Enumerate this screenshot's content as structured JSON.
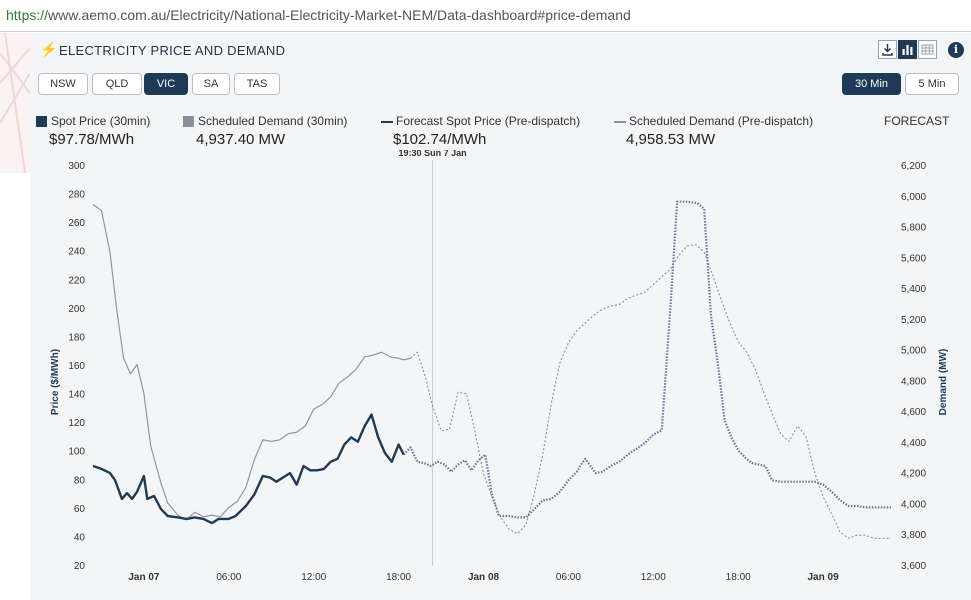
{
  "browser": {
    "url_scheme": "https://",
    "url_rest": "www.aemo.com.au/Electricity/National-Electricity-Market-NEM/Data-dashboard#price-demand"
  },
  "panel": {
    "title": "ELECTRICITY PRICE AND DEMAND",
    "info_label": "i"
  },
  "regions": [
    "NSW",
    "QLD",
    "VIC",
    "SA",
    "TAS"
  ],
  "selected_region": "VIC",
  "intervals": [
    "30 Min",
    "5 Min"
  ],
  "selected_interval": "30 Min",
  "legend": {
    "spot_label": "Spot Price (30min)",
    "spot_value": "$97.78/MWh",
    "demand_label": "Scheduled Demand (30min)",
    "demand_value": "4,937.40 MW",
    "fc_spot_label": "Forecast Spot Price (Pre-dispatch)",
    "fc_spot_value": "$102.74/MWh",
    "fc_demand_label": "Scheduled Demand (Pre-dispatch)",
    "fc_demand_value": "4,958.53 MW",
    "forecast_label": "FORECAST"
  },
  "colors": {
    "spot": "#1f3a56",
    "demand": "#8a8f99",
    "forecast_spot": "#6d7391",
    "forecast_demand": "#8a8f99",
    "accent": "#1f3a56"
  },
  "chart_data": {
    "type": "line",
    "xlabel": "",
    "ylabel": "Price ($/MWh)",
    "y2label": "Demand (MW)",
    "ylim": [
      20,
      300
    ],
    "y2lim": [
      3600,
      6200
    ],
    "yticks": [
      20,
      40,
      60,
      80,
      100,
      120,
      140,
      160,
      180,
      200,
      220,
      240,
      260,
      280,
      300
    ],
    "y2ticks": [
      "3,600",
      "3,800",
      "4,000",
      "4,200",
      "4,400",
      "4,600",
      "4,800",
      "5,000",
      "5,200",
      "5,400",
      "5,600",
      "5,800",
      "6,000",
      "6,200"
    ],
    "xticks": [
      {
        "label": "Jan 07",
        "x": 3,
        "bold": true
      },
      {
        "label": "06:00",
        "x": 8,
        "bold": false
      },
      {
        "label": "12:00",
        "x": 13,
        "bold": false
      },
      {
        "label": "18:00",
        "x": 18,
        "bold": false
      },
      {
        "label": "Jan 08",
        "x": 23,
        "bold": true
      },
      {
        "label": "06:00",
        "x": 28,
        "bold": false
      },
      {
        "label": "12:00",
        "x": 33,
        "bold": false
      },
      {
        "label": "18:00",
        "x": 38,
        "bold": false
      },
      {
        "label": "Jan 09",
        "x": 43,
        "bold": true
      }
    ],
    "xrange": [
      0,
      47
    ],
    "now_x": 20,
    "now_label": "19:30 Sun 7 Jan",
    "series": [
      {
        "name": "Spot Price (30min)",
        "axis": "left",
        "style": "solid",
        "points": [
          [
            0,
            90
          ],
          [
            0.5,
            88
          ],
          [
            1,
            85
          ],
          [
            1.3,
            80
          ],
          [
            1.7,
            67
          ],
          [
            2,
            71
          ],
          [
            2.3,
            67
          ],
          [
            2.6,
            72
          ],
          [
            3,
            83
          ],
          [
            3.2,
            67
          ],
          [
            3.6,
            69
          ],
          [
            4,
            60
          ],
          [
            4.4,
            55
          ],
          [
            5,
            54
          ],
          [
            5.5,
            53
          ],
          [
            6,
            54
          ],
          [
            6.5,
            53
          ],
          [
            7,
            50
          ],
          [
            7.4,
            53
          ],
          [
            8,
            53
          ],
          [
            8.4,
            55
          ],
          [
            9,
            62
          ],
          [
            9.5,
            70
          ],
          [
            10,
            83
          ],
          [
            10.4,
            82
          ],
          [
            10.8,
            79
          ],
          [
            11.2,
            82
          ],
          [
            11.6,
            85
          ],
          [
            12,
            77
          ],
          [
            12.4,
            90
          ],
          [
            12.8,
            87
          ],
          [
            13.2,
            87
          ],
          [
            13.6,
            88
          ],
          [
            14,
            93
          ],
          [
            14.4,
            95
          ],
          [
            14.8,
            105
          ],
          [
            15.2,
            110
          ],
          [
            15.6,
            107
          ],
          [
            16,
            118
          ],
          [
            16.4,
            126
          ],
          [
            16.8,
            110
          ],
          [
            17.2,
            99
          ],
          [
            17.6,
            93
          ],
          [
            18,
            105
          ],
          [
            18.3,
            98
          ]
        ]
      },
      {
        "name": "Scheduled Demand (30min)",
        "axis": "right",
        "style": "solid",
        "points": [
          [
            0,
            5950
          ],
          [
            0.5,
            5910
          ],
          [
            1,
            5640
          ],
          [
            1.4,
            5260
          ],
          [
            1.8,
            4950
          ],
          [
            2.2,
            4850
          ],
          [
            2.6,
            4910
          ],
          [
            3,
            4720
          ],
          [
            3.4,
            4380
          ],
          [
            4,
            4140
          ],
          [
            4.4,
            4010
          ],
          [
            5,
            3930
          ],
          [
            5.5,
            3900
          ],
          [
            6,
            3950
          ],
          [
            6.5,
            3920
          ],
          [
            7,
            3930
          ],
          [
            7.5,
            3920
          ],
          [
            8,
            3980
          ],
          [
            8.5,
            4020
          ],
          [
            9,
            4110
          ],
          [
            9.5,
            4290
          ],
          [
            10,
            4420
          ],
          [
            10.5,
            4410
          ],
          [
            11,
            4420
          ],
          [
            11.5,
            4460
          ],
          [
            12,
            4470
          ],
          [
            12.5,
            4510
          ],
          [
            13,
            4620
          ],
          [
            13.5,
            4650
          ],
          [
            14,
            4700
          ],
          [
            14.5,
            4790
          ],
          [
            15,
            4830
          ],
          [
            15.5,
            4880
          ],
          [
            16,
            4960
          ],
          [
            16.5,
            4970
          ],
          [
            17,
            4990
          ],
          [
            17.5,
            4960
          ],
          [
            18,
            4950
          ],
          [
            18.3,
            4940
          ],
          [
            18.7,
            4950
          ]
        ]
      },
      {
        "name": "Forecast Spot Price (Pre-dispatch)",
        "axis": "left",
        "style": "dotted",
        "points": [
          [
            18.3,
            98
          ],
          [
            18.7,
            103
          ],
          [
            19.1,
            93
          ],
          [
            19.5,
            92
          ],
          [
            19.9,
            90
          ],
          [
            20.3,
            93
          ],
          [
            20.7,
            91
          ],
          [
            21.1,
            86
          ],
          [
            21.5,
            91
          ],
          [
            21.9,
            94
          ],
          [
            22.3,
            87
          ],
          [
            22.7,
            94
          ],
          [
            23.1,
            98
          ],
          [
            23.5,
            70
          ],
          [
            23.9,
            55
          ],
          [
            24.5,
            55
          ],
          [
            25,
            54
          ],
          [
            25.5,
            54
          ],
          [
            26,
            60
          ],
          [
            26.5,
            66
          ],
          [
            27,
            67
          ],
          [
            27.5,
            72
          ],
          [
            28,
            80
          ],
          [
            28.5,
            86
          ],
          [
            28.8,
            92
          ],
          [
            29,
            95
          ],
          [
            29.3,
            90
          ],
          [
            29.6,
            85
          ],
          [
            30,
            86
          ],
          [
            30.5,
            90
          ],
          [
            31,
            93
          ],
          [
            31.5,
            98
          ],
          [
            32,
            102
          ],
          [
            32.5,
            106
          ],
          [
            33,
            112
          ],
          [
            33.5,
            115
          ],
          [
            34,
            200
          ],
          [
            34.4,
            275
          ],
          [
            35,
            275
          ],
          [
            35.6,
            274
          ],
          [
            36,
            270
          ],
          [
            36.4,
            195
          ],
          [
            36.8,
            162
          ],
          [
            37.2,
            122
          ],
          [
            37.6,
            110
          ],
          [
            38,
            101
          ],
          [
            38.4,
            96
          ],
          [
            38.8,
            92
          ],
          [
            39.2,
            91
          ],
          [
            39.6,
            90
          ],
          [
            40,
            80
          ],
          [
            40.5,
            79
          ],
          [
            41,
            79
          ],
          [
            41.5,
            79
          ],
          [
            42,
            79
          ],
          [
            42.5,
            79
          ],
          [
            43,
            77
          ],
          [
            43.5,
            72
          ],
          [
            44,
            66
          ],
          [
            44.5,
            62
          ],
          [
            45,
            62
          ],
          [
            45.5,
            61
          ],
          [
            46,
            61
          ],
          [
            46.5,
            61
          ],
          [
            47,
            61
          ]
        ]
      },
      {
        "name": "Scheduled Demand (Pre-dispatch)",
        "axis": "right",
        "style": "dotted",
        "points": [
          [
            18.7,
            4950
          ],
          [
            19.1,
            4990
          ],
          [
            19.6,
            4820
          ],
          [
            20,
            4640
          ],
          [
            20.5,
            4480
          ],
          [
            21,
            4490
          ],
          [
            21.5,
            4730
          ],
          [
            22,
            4720
          ],
          [
            22.5,
            4470
          ],
          [
            23,
            4200
          ],
          [
            23.5,
            4050
          ],
          [
            24,
            3920
          ],
          [
            24.5,
            3840
          ],
          [
            25,
            3810
          ],
          [
            25.5,
            3870
          ],
          [
            26,
            4070
          ],
          [
            26.5,
            4330
          ],
          [
            27,
            4660
          ],
          [
            27.5,
            4920
          ],
          [
            28,
            5050
          ],
          [
            28.5,
            5130
          ],
          [
            29,
            5180
          ],
          [
            29.5,
            5230
          ],
          [
            30,
            5270
          ],
          [
            30.5,
            5290
          ],
          [
            31,
            5300
          ],
          [
            31.5,
            5340
          ],
          [
            32,
            5360
          ],
          [
            32.5,
            5380
          ],
          [
            33,
            5430
          ],
          [
            33.5,
            5480
          ],
          [
            34,
            5530
          ],
          [
            34.5,
            5620
          ],
          [
            35,
            5680
          ],
          [
            35.5,
            5690
          ],
          [
            36,
            5640
          ],
          [
            36.5,
            5490
          ],
          [
            37,
            5330
          ],
          [
            37.5,
            5180
          ],
          [
            38,
            5060
          ],
          [
            38.5,
            4990
          ],
          [
            39,
            4880
          ],
          [
            39.5,
            4730
          ],
          [
            40,
            4590
          ],
          [
            40.5,
            4460
          ],
          [
            41,
            4410
          ],
          [
            41.5,
            4510
          ],
          [
            42,
            4440
          ],
          [
            42.5,
            4210
          ],
          [
            43,
            4050
          ],
          [
            43.5,
            3940
          ],
          [
            44,
            3820
          ],
          [
            44.5,
            3780
          ],
          [
            45,
            3800
          ],
          [
            45.5,
            3800
          ],
          [
            46,
            3780
          ],
          [
            46.5,
            3780
          ],
          [
            47,
            3780
          ]
        ]
      }
    ]
  }
}
